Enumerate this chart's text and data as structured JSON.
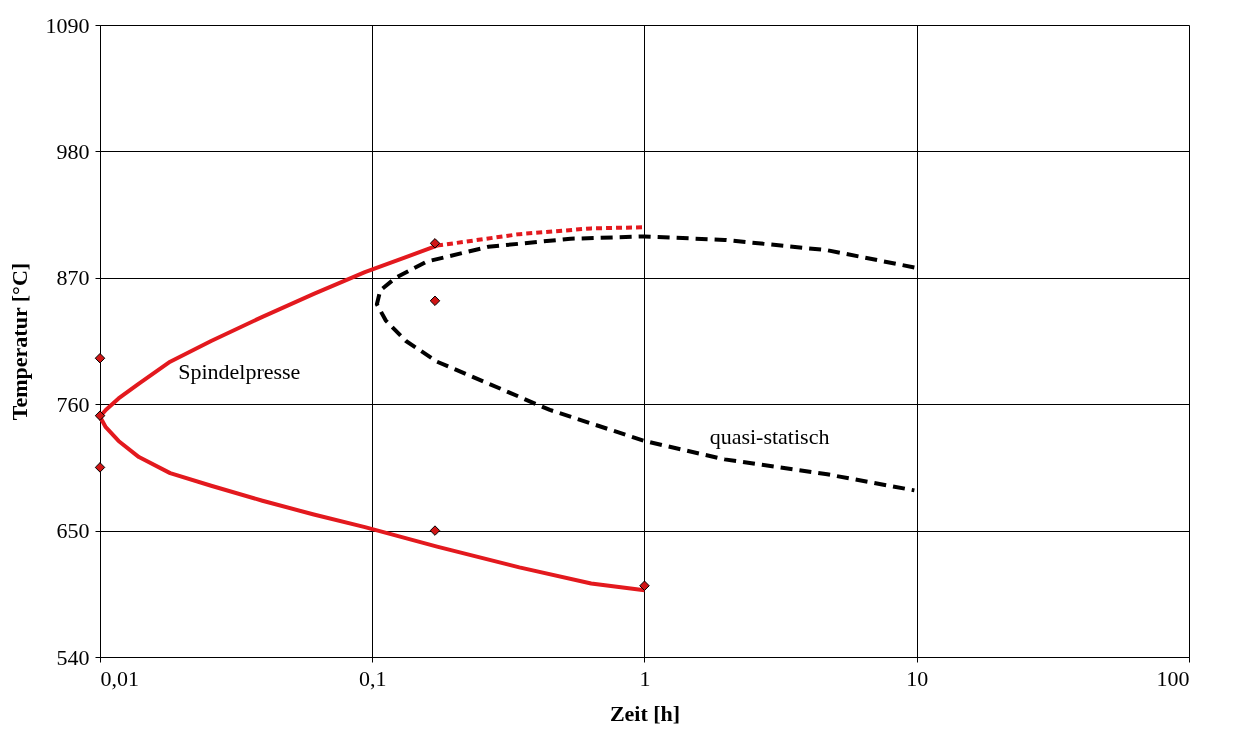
{
  "chart_data": {
    "type": "line",
    "xlabel": "Zeit [h]",
    "ylabel": "Temperatur [°C]",
    "log": "x",
    "xlim": [
      0.01,
      100
    ],
    "xticks": [
      {
        "value": 0.01,
        "label": "0,01"
      },
      {
        "value": 0.1,
        "label": "0,1"
      },
      1,
      10,
      100
    ],
    "ylim": [
      540,
      1090
    ],
    "yticks": [
      540,
      650,
      760,
      870,
      980,
      1090
    ],
    "grid": true,
    "series": [
      {
        "name": "Spindelpresse",
        "line_style": "solid",
        "color": "#e3191e",
        "x": [
          0.173,
          0.133,
          0.094,
          0.061,
          0.0395,
          0.0256,
          0.0181,
          0.0139,
          0.0117,
          0.0105,
          0.01,
          0.0105,
          0.0117,
          0.0139,
          0.0181,
          0.0256,
          0.0395,
          0.061,
          0.094,
          0.173,
          0.347,
          0.637,
          1.0
        ],
        "values": [
          898,
          888,
          875,
          856,
          836,
          815,
          797,
          778,
          765,
          755,
          749,
          740,
          728,
          714,
          700,
          689,
          676,
          664,
          653,
          636,
          618,
          604,
          598
        ]
      },
      {
        "line_style": "dotted",
        "color": "#e3191e",
        "x": [
          0.173,
          0.347,
          0.637,
          1.0
        ],
        "values": [
          898,
          908,
          913,
          914
        ]
      },
      {
        "name": "quasi-statisch",
        "line_style": "dashed",
        "color": "#000000",
        "x": [
          9.8,
          4.69,
          1.97,
          1.0,
          0.535,
          0.267,
          0.158,
          0.122,
          0.107,
          0.104,
          0.112,
          0.133,
          0.173,
          0.267,
          0.449,
          1.0,
          1.97,
          4.69,
          9.8
        ],
        "values": [
          879,
          894,
          903,
          906,
          904,
          897,
          884,
          870,
          859,
          847,
          833,
          815,
          797,
          778,
          755,
          728,
          712,
          699,
          685
        ]
      },
      {
        "type": "scatter",
        "marker": "diamond",
        "color": "#d01515",
        "x": [
          0.01,
          0.01,
          0.01,
          0.17,
          0.17,
          0.17,
          1.0
        ],
        "values": [
          800,
          750,
          705,
          900,
          850,
          650,
          602
        ]
      }
    ]
  }
}
